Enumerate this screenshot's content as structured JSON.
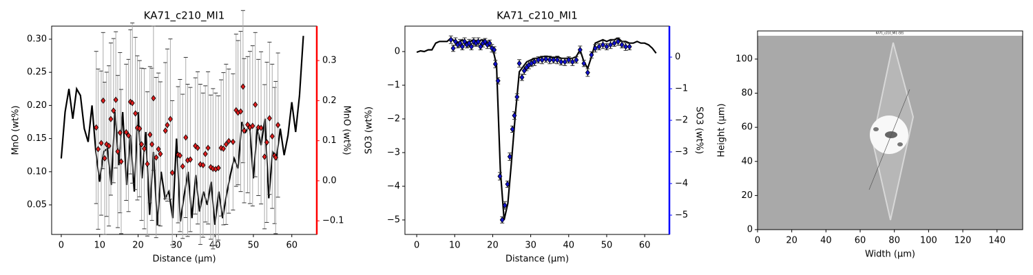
{
  "chart_data": [
    {
      "type": "line",
      "title": "KA71_c210_MI1",
      "x_label": "Distance (µm)",
      "y_label": "MnO (wt%)",
      "y2_label": "MnO (wt%)",
      "y2_color": "#ff0000",
      "xlim": [
        -2.5,
        66.5
      ],
      "xticks": [
        0,
        10,
        20,
        30,
        40,
        50,
        60
      ],
      "ylim": [
        0.0054,
        0.3197
      ],
      "yticks": [
        0.05,
        {
          "value": 0.1,
          "label": "0.10"
        },
        0.15,
        {
          "value": 0.2,
          "label": "0.20"
        },
        0.25,
        {
          "value": 0.3,
          "label": "0.30"
        }
      ],
      "y2lim": [
        -0.134,
        0.386
      ],
      "y2ticks": [
        {
          "value": -0.1,
          "label": "−0.1"
        },
        {
          "value": 0,
          "label": "0.0"
        },
        0.1,
        0.2,
        0.3
      ],
      "error_color": "#aaaaaa",
      "series": [
        {
          "color": "#000000",
          "style": "line",
          "x": [
            0,
            1,
            2,
            3,
            4,
            5,
            6,
            7,
            8,
            9,
            10,
            11,
            12,
            13,
            14,
            15,
            16,
            17,
            18,
            19,
            20,
            21,
            22,
            23,
            24,
            25,
            26,
            27,
            28,
            29,
            30,
            31,
            32,
            33,
            34,
            35,
            36,
            37,
            38,
            39,
            40,
            41,
            42,
            43,
            44,
            45,
            46,
            47,
            48,
            49,
            50,
            51,
            52,
            53,
            54,
            55,
            56,
            57,
            58,
            59,
            60,
            61,
            62,
            63
          ],
          "values": [
            0.12,
            0.19,
            0.225,
            0.18,
            0.225,
            0.215,
            0.165,
            0.145,
            0.2,
            0.13,
            0.085,
            0.13,
            0.135,
            0.08,
            0.19,
            0.11,
            0.19,
            0.08,
            0.155,
            0.07,
            0.19,
            0.09,
            0.16,
            0.035,
            0.13,
            0.02,
            0.1,
            0.06,
            0.07,
            0.03,
            0.15,
            0.025,
            0.065,
            0.1,
            0.03,
            0.095,
            0.04,
            0.07,
            0.05,
            0.085,
            0.02,
            0.07,
            0.03,
            0.065,
            0.095,
            0.12,
            0.105,
            0.175,
            0.16,
            0.17,
            0.09,
            0.165,
            0.14,
            0.18,
            0.06,
            0.13,
            0.12,
            0.165,
            0.125,
            0.155,
            0.205,
            0.16,
            0.215,
            0.305
          ]
        },
        {
          "color": "#dd1c1c",
          "style": "marker",
          "axis": "y2",
          "x": [
            9.1,
            9.6,
            10.4,
            10.9,
            11.3,
            11.8,
            12.4,
            12.9,
            13.6,
            14.2,
            14.7,
            15.3,
            15.6,
            16.9,
            17.5,
            18.0,
            18.5,
            19.3,
            19.8,
            20.4,
            20.9,
            21.6,
            22.4,
            23.1,
            23.6,
            24.0,
            24.7,
            25.3,
            25.8,
            27.1,
            27.6,
            28.4,
            28.9,
            30.4,
            30.9,
            31.6,
            32.4,
            32.9,
            33.6,
            34.9,
            35.5,
            36.2,
            36.9,
            37.5,
            38.2,
            38.9,
            39.5,
            40.2,
            40.9,
            41.6,
            42.2,
            42.9,
            43.6,
            44.7,
            45.5,
            46.0,
            46.7,
            47.3,
            47.6,
            48.5,
            49.1,
            49.8,
            50.5,
            51.3,
            52.0,
            52.9,
            53.5,
            54.2,
            54.9,
            55.5,
            55.8,
            56.4
          ],
          "values": [
            0.133,
            0.079,
            0.094,
            0.2,
            0.056,
            0.091,
            0.087,
            0.154,
            0.175,
            0.202,
            0.073,
            0.12,
            0.048,
            0.121,
            0.113,
            0.197,
            0.194,
            0.168,
            0.132,
            0.13,
            0.091,
            0.08,
            0.042,
            0.115,
            0.091,
            0.206,
            0.058,
            0.079,
            0.067,
            0.125,
            0.139,
            0.154,
            0.02,
            0.065,
            0.063,
            0.036,
            0.108,
            0.051,
            0.053,
            0.087,
            0.082,
            0.041,
            0.039,
            0.067,
            0.082,
            0.034,
            0.03,
            0.029,
            0.032,
            0.082,
            0.08,
            0.091,
            0.099,
            0.097,
            0.176,
            0.17,
            0.173,
            0.235,
            0.125,
            0.14,
            0.133,
            0.137,
            0.19,
            0.133,
            0.132,
            0.06,
            0.096,
            0.156,
            0.111,
            0.063,
            0.058,
            0.139
          ],
          "errors": [
            0.19,
            0.2,
            0.18,
            0.17,
            0.19,
            0.18,
            0.2,
            0.19,
            0.18,
            0.17,
            0.19,
            0.2,
            0.18,
            0.17,
            0.19,
            0.18,
            0.2,
            0.19,
            0.18,
            0.17,
            0.19,
            0.2,
            0.18,
            0.17,
            0.19,
            0.18,
            0.2,
            0.19,
            0.18,
            0.17,
            0.19,
            0.2,
            0.18,
            0.17,
            0.19,
            0.18,
            0.2,
            0.19,
            0.18,
            0.17,
            0.19,
            0.2,
            0.18,
            0.17,
            0.19,
            0.18,
            0.2,
            0.19,
            0.18,
            0.17,
            0.19,
            0.2,
            0.18,
            0.17,
            0.19,
            0.18,
            0.2,
            0.19,
            0.18,
            0.17,
            0.19,
            0.2,
            0.18,
            0.17,
            0.19,
            0.18,
            0.2,
            0.19,
            0.18,
            0.17,
            0.19,
            0.18
          ]
        }
      ]
    },
    {
      "type": "line",
      "title": "KA71_c210_MI1",
      "x_label": "Distance (µm)",
      "y_label": "SO3 (wt%)",
      "y2_label": "SO3 (wt%)",
      "y2_color": "#0000ff",
      "xlim": [
        -3.1,
        66.5
      ],
      "xticks": [
        0,
        10,
        20,
        30,
        40,
        50,
        60
      ],
      "ylim": [
        -5.43,
        0.755
      ],
      "yticks": [
        {
          "value": -5,
          "label": "−5"
        },
        {
          "value": -4,
          "label": "−4"
        },
        {
          "value": -3,
          "label": "−3"
        },
        {
          "value": -2,
          "label": "−2"
        },
        {
          "value": -1,
          "label": "−1"
        },
        0
      ],
      "y2lim": [
        -5.61,
        0.98
      ],
      "y2ticks": [
        {
          "value": -5,
          "label": "−5"
        },
        {
          "value": -4,
          "label": "−4"
        },
        {
          "value": -3,
          "label": "−3"
        },
        {
          "value": -2,
          "label": "−2"
        },
        {
          "value": -1,
          "label": "−1"
        },
        0
      ],
      "error_color": "#000000",
      "series": [
        {
          "color": "#000000",
          "style": "line",
          "x": [
            0,
            1,
            2,
            3,
            4,
            5,
            6,
            7,
            8,
            9,
            10,
            11,
            12,
            13,
            14,
            15,
            16,
            17,
            18,
            19,
            20,
            21,
            22,
            23,
            24,
            25,
            26,
            27,
            28,
            29,
            30,
            31,
            32,
            33,
            34,
            35,
            36,
            37,
            38,
            39,
            40,
            41,
            42,
            43,
            44,
            45,
            46,
            47,
            48,
            49,
            50,
            51,
            52,
            53,
            54,
            55,
            56,
            57,
            58,
            59,
            60,
            61,
            62,
            63
          ],
          "values": [
            -0.02,
            0.02,
            0.0,
            0.05,
            0.05,
            0.25,
            0.3,
            0.3,
            0.3,
            0.4,
            0.3,
            0.25,
            0.35,
            0.25,
            0.3,
            0.35,
            0.25,
            0.35,
            0.3,
            0.2,
            0.1,
            -0.4,
            -3.5,
            -5.0,
            -4.5,
            -3.2,
            -1.8,
            -0.6,
            -0.45,
            -0.3,
            -0.25,
            -0.2,
            -0.2,
            -0.15,
            -0.15,
            -0.15,
            -0.2,
            -0.15,
            -0.2,
            -0.2,
            -0.2,
            -0.2,
            -0.15,
            0.05,
            -0.3,
            -0.5,
            -0.15,
            0.25,
            0.3,
            0.35,
            0.3,
            0.35,
            0.35,
            0.4,
            0.3,
            0.3,
            0.25,
            0.25,
            0.3,
            0.25,
            0.25,
            0.2,
            0.1,
            -0.05
          ]
        },
        {
          "color": "#1010cc",
          "style": "marker",
          "axis": "y2",
          "x": [
            9,
            9.6,
            10.2,
            10.8,
            11.4,
            12,
            12.6,
            13.2,
            13.8,
            14.4,
            15,
            15.6,
            16.2,
            16.8,
            17.4,
            18,
            18.6,
            19.2,
            19.8,
            20.4,
            20.7,
            21.4,
            21.9,
            22.5,
            23.2,
            23.9,
            24.5,
            25.2,
            25.7,
            26.4,
            27,
            27.7,
            28.3,
            28.9,
            29.5,
            30.2,
            31,
            32,
            33,
            34,
            35,
            36,
            37,
            38,
            39,
            40,
            41,
            42,
            43,
            44,
            45,
            46,
            47,
            48,
            49,
            50,
            51,
            52,
            53,
            54,
            55,
            56
          ],
          "values": [
            0.55,
            0.28,
            0.49,
            0.39,
            0.44,
            0.33,
            0.49,
            0.39,
            0.44,
            0.33,
            0.49,
            0.44,
            0.49,
            0.33,
            0.44,
            0.49,
            0.39,
            0.44,
            0.28,
            0.23,
            -0.22,
            -0.75,
            -3.77,
            -5.15,
            -4.69,
            -4.02,
            -3.15,
            -2.28,
            -1.85,
            -1.26,
            -0.2,
            -0.64,
            -0.43,
            -0.33,
            -0.25,
            -0.2,
            -0.15,
            -0.09,
            -0.09,
            -0.06,
            -0.09,
            -0.09,
            -0.09,
            -0.15,
            -0.15,
            -0.09,
            -0.15,
            -0.09,
            0.23,
            -0.2,
            -0.49,
            0.07,
            0.28,
            0.33,
            0.39,
            0.33,
            0.39,
            0.44,
            0.49,
            0.39,
            0.33,
            0.33
          ],
          "errors": [
            0.12,
            0.1,
            0.12,
            0.1,
            0.12,
            0.1,
            0.12,
            0.1,
            0.12,
            0.1,
            0.12,
            0.1,
            0.12,
            0.1,
            0.12,
            0.1,
            0.12,
            0.1,
            0.12,
            0.1,
            0.12,
            0.1,
            0.12,
            0.1,
            0.12,
            0.1,
            0.12,
            0.1,
            0.12,
            0.1,
            0.12,
            0.1,
            0.12,
            0.1,
            0.12,
            0.1,
            0.12,
            0.1,
            0.12,
            0.1,
            0.12,
            0.1,
            0.12,
            0.1,
            0.12,
            0.1,
            0.12,
            0.1,
            0.12,
            0.1,
            0.12,
            0.1,
            0.12,
            0.1,
            0.12,
            0.1,
            0.12,
            0.1,
            0.12,
            0.1,
            0.12,
            0.1
          ]
        }
      ]
    },
    {
      "type": "image",
      "image_title": "KA71_c210_MI1 (SE)",
      "x_label": "Width (µm)",
      "y_label": "Height (µm)",
      "xlim": [
        0,
        155
      ],
      "xticks": [
        0,
        20,
        40,
        60,
        80,
        100,
        120,
        140
      ],
      "ylim": [
        0,
        116.5
      ],
      "yticks": [
        0,
        20,
        40,
        60,
        80,
        100
      ]
    }
  ]
}
